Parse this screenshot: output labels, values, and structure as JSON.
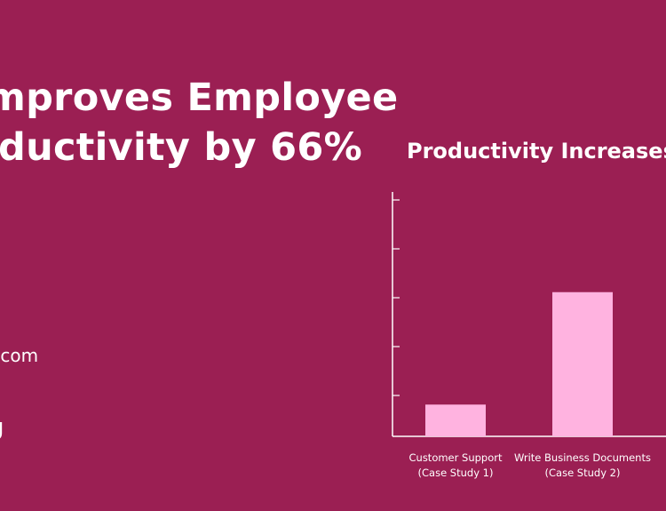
{
  "headline": {
    "line1": "mproves Employee",
    "line2": "ductivity by 66%"
  },
  "meta": {
    "line1": ".com",
    "line2": ".",
    "line3": "g"
  },
  "chart_data": {
    "type": "bar",
    "title": "Productivity Increases v",
    "categories": [
      [
        "Customer Support",
        "(Case Study 1)"
      ],
      [
        "Write Business Documents",
        "(Case Study 2)"
      ]
    ],
    "values": [
      13,
      59
    ],
    "ylim": [
      0,
      100
    ],
    "yticks": [
      20,
      40,
      60,
      80,
      100
    ],
    "grid": false,
    "bar_color": "#ffb3e0",
    "axis_color": "#ffffff"
  },
  "colors": {
    "background": "#9b1f53",
    "text": "#ffffff"
  }
}
